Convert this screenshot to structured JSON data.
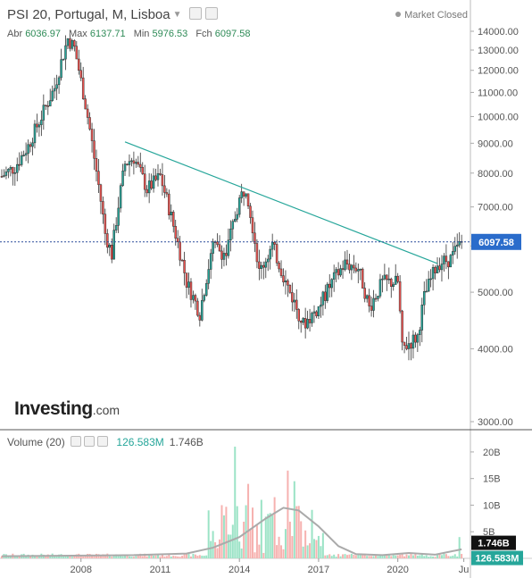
{
  "header": {
    "title": "PSI 20, Portugal, M, Lisboa",
    "market_status": "Market Closed",
    "ohlc": {
      "open_label": "Abr",
      "open": "6036.97",
      "high_label": "Max",
      "high": "6137.71",
      "low_label": "Min",
      "low": "5976.53",
      "close_label": "Fch",
      "close": "6097.58"
    }
  },
  "logo": {
    "main": "Investing",
    "suffix": ".com"
  },
  "volume_legend": {
    "label": "Volume (20)",
    "value": "126.583M",
    "ma": "1.746B"
  },
  "colors": {
    "up": "#26a69a",
    "down": "#ef5350",
    "trendline": "#26a69a",
    "price_line": "#2a4b9b",
    "volume_ma": "#aaaaaa"
  },
  "chart_data": [
    {
      "type": "candlestick",
      "title": "PSI 20, Portugal, M, Lisboa",
      "x_ticks": [
        "2008",
        "2011",
        "2014",
        "2017",
        "2020",
        "Ju"
      ],
      "y_ticks": [
        "14000.00",
        "13000.00",
        "12000.00",
        "11000.00",
        "10000.00",
        "9000.00",
        "8000.00",
        "7000.00",
        "6000.00",
        "5000.00",
        "4000.00",
        "3000.00"
      ],
      "ylim": [
        3000,
        14000
      ],
      "last_price": 6097.58,
      "last_price_label": "6097.58",
      "trendline": [
        {
          "x": "2009-09",
          "y": 9050
        },
        {
          "x": "2021-07",
          "y": 5600
        }
      ],
      "series": [
        {
          "x": "2005-01",
          "y": 7900
        },
        {
          "x": "2005-07",
          "y": 8200
        },
        {
          "x": "2006-01",
          "y": 8900
        },
        {
          "x": "2006-07",
          "y": 10000
        },
        {
          "x": "2007-01",
          "y": 11200
        },
        {
          "x": "2007-07",
          "y": 13600
        },
        {
          "x": "2007-10",
          "y": 13100
        },
        {
          "x": "2008-01",
          "y": 11500
        },
        {
          "x": "2008-07",
          "y": 8500
        },
        {
          "x": "2008-12",
          "y": 6300
        },
        {
          "x": "2009-03",
          "y": 5800
        },
        {
          "x": "2009-09",
          "y": 8300
        },
        {
          "x": "2010-01",
          "y": 8500
        },
        {
          "x": "2010-07",
          "y": 7500
        },
        {
          "x": "2011-01",
          "y": 7900
        },
        {
          "x": "2011-07",
          "y": 6500
        },
        {
          "x": "2012-01",
          "y": 5200
        },
        {
          "x": "2012-07",
          "y": 4600
        },
        {
          "x": "2013-01",
          "y": 6000
        },
        {
          "x": "2013-07",
          "y": 5800
        },
        {
          "x": "2014-01",
          "y": 7200
        },
        {
          "x": "2014-04",
          "y": 7600
        },
        {
          "x": "2014-10",
          "y": 5400
        },
        {
          "x": "2015-04",
          "y": 6000
        },
        {
          "x": "2015-10",
          "y": 5200
        },
        {
          "x": "2016-06",
          "y": 4400
        },
        {
          "x": "2017-01",
          "y": 4700
        },
        {
          "x": "2017-07",
          "y": 5200
        },
        {
          "x": "2018-01",
          "y": 5600
        },
        {
          "x": "2018-07",
          "y": 5500
        },
        {
          "x": "2018-12",
          "y": 4700
        },
        {
          "x": "2019-06",
          "y": 5200
        },
        {
          "x": "2020-01",
          "y": 5200
        },
        {
          "x": "2020-03",
          "y": 4000
        },
        {
          "x": "2020-10",
          "y": 4200
        },
        {
          "x": "2021-01",
          "y": 4900
        },
        {
          "x": "2021-07",
          "y": 5600
        },
        {
          "x": "2022-01",
          "y": 5700
        },
        {
          "x": "2022-06",
          "y": 6100
        }
      ]
    },
    {
      "type": "bar",
      "title": "Volume (20)",
      "y_ticks": [
        "20B",
        "15B",
        "10B",
        "5B"
      ],
      "ylim": [
        0,
        22
      ],
      "unit": "B",
      "last_value_label": "126.583M",
      "ma_value_label": "1.746B",
      "ma_series": [
        {
          "x": "2005-01",
          "y": 0.4
        },
        {
          "x": "2010-01",
          "y": 0.6
        },
        {
          "x": "2012-01",
          "y": 0.9
        },
        {
          "x": "2013-01",
          "y": 2.0
        },
        {
          "x": "2014-01",
          "y": 4.0
        },
        {
          "x": "2015-01",
          "y": 7.5
        },
        {
          "x": "2015-09",
          "y": 9.5
        },
        {
          "x": "2016-04",
          "y": 9.0
        },
        {
          "x": "2017-01",
          "y": 6.0
        },
        {
          "x": "2017-10",
          "y": 2.3
        },
        {
          "x": "2018-06",
          "y": 0.8
        },
        {
          "x": "2019-06",
          "y": 0.6
        },
        {
          "x": "2020-06",
          "y": 1.0
        },
        {
          "x": "2021-06",
          "y": 0.7
        },
        {
          "x": "2022-06",
          "y": 1.7
        }
      ],
      "highlights": [
        {
          "x": "2013-11",
          "y": 21.0
        },
        {
          "x": "2015-11",
          "y": 16.5
        },
        {
          "x": "2014-05",
          "y": 14.0
        },
        {
          "x": "2016-02",
          "y": 14.5
        },
        {
          "x": "2015-05",
          "y": 11.5
        },
        {
          "x": "2013-05",
          "y": 10.0
        },
        {
          "x": "2014-11",
          "y": 11.0
        },
        {
          "x": "2022-05",
          "y": 4.0
        }
      ]
    }
  ]
}
